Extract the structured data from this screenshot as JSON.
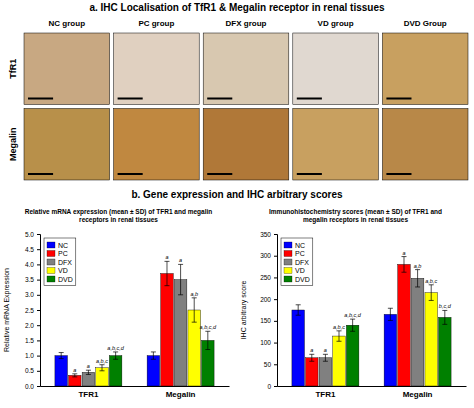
{
  "title": "b. Gene expression and IHC arbitrary scores",
  "chart_data": [
    {
      "type": "image_grid",
      "title": "a. IHC Localisation of TfR1 & Megalin receptor in renal tissues",
      "categories": [
        "NC group",
        "PC group",
        "DFX group",
        "VD group",
        "DVD Group"
      ],
      "series": [
        {
          "name": "TfR1",
          "colors": [
            "#C8A882",
            "#E0D0C0",
            "#D8C8B0",
            "#E0D8D0",
            "#C8A060"
          ]
        },
        {
          "name": "Megalin",
          "colors": [
            "#B8904A",
            "#C08840",
            "#B07838",
            "#C8A060",
            "#B88848"
          ]
        }
      ]
    },
    {
      "type": "bar",
      "title": "Relative mRNA expression (mean ± SD) of TFR1 and megalin\nreceptors in renal tissues",
      "ylabel": "Relative mRNA Expression",
      "categories": [
        "TFR1",
        "Megalin"
      ],
      "series": [
        {
          "name": "NC",
          "color": "#0000FF",
          "values": [
            1.0,
            1.0
          ],
          "errors": [
            0.1,
            0.12
          ]
        },
        {
          "name": "PC",
          "color": "#FF0000",
          "values": [
            0.35,
            3.7
          ],
          "errors": [
            0.05,
            0.4
          ],
          "annotations": [
            "a",
            "a"
          ]
        },
        {
          "name": "DFX",
          "color": "#808080",
          "values": [
            0.45,
            3.5
          ],
          "errors": [
            0.07,
            0.5
          ],
          "annotations": [
            "a",
            "a"
          ]
        },
        {
          "name": "VD",
          "color": "#FFFF00",
          "values": [
            0.6,
            2.5
          ],
          "errors": [
            0.1,
            0.4
          ],
          "annotations": [
            "a,b,c",
            "a,b"
          ]
        },
        {
          "name": "DVD",
          "color": "#008000",
          "values": [
            1.0,
            1.5
          ],
          "errors": [
            0.12,
            0.3
          ],
          "annotations": [
            "a,b,c,d",
            "a,b,c,d"
          ]
        }
      ],
      "ylim": [
        0,
        5
      ],
      "yticks": [
        {
          "value": 0,
          "label": "0.0"
        },
        0.5,
        {
          "value": 1.0,
          "label": "1.0"
        },
        1.5,
        {
          "value": 2.0,
          "label": "2.0"
        },
        2.5,
        {
          "value": 3.0,
          "label": "3.0"
        },
        3.5,
        {
          "value": 4.0,
          "label": "4.0"
        },
        4.5,
        {
          "value": 5,
          "label": "5.0"
        }
      ],
      "legend": "upper left"
    },
    {
      "type": "bar",
      "title": "Immunohistochemistry scores (mean ± SD) of TFR1 and\nmegalin receptors in renal tissues",
      "ylabel": "IHC arbitrary score",
      "categories": [
        "TFR1",
        "Megalin"
      ],
      "series": [
        {
          "name": "NC",
          "color": "#0000FF",
          "values": [
            175,
            165
          ],
          "errors": [
            12,
            14
          ]
        },
        {
          "name": "PC",
          "color": "#FF0000",
          "values": [
            65,
            280
          ],
          "errors": [
            8,
            18
          ],
          "annotations": [
            "a",
            "a"
          ]
        },
        {
          "name": "DFX",
          "color": "#808080",
          "values": [
            65,
            248
          ],
          "errors": [
            8,
            20
          ],
          "annotations": [
            "a",
            "a,b"
          ]
        },
        {
          "name": "VD",
          "color": "#FFFF00",
          "values": [
            115,
            215
          ],
          "errors": [
            12,
            18
          ],
          "annotations": [
            "a,b,c",
            "a,b,c"
          ]
        },
        {
          "name": "DVD",
          "color": "#008000",
          "values": [
            140,
            158
          ],
          "errors": [
            14,
            16
          ],
          "annotations": [
            "a,b,c,d",
            "b,c,d"
          ]
        }
      ],
      "ylim": [
        0,
        350
      ],
      "yticks": [
        0,
        50,
        100,
        150,
        200,
        250,
        300,
        350
      ],
      "legend": "upper left"
    }
  ]
}
